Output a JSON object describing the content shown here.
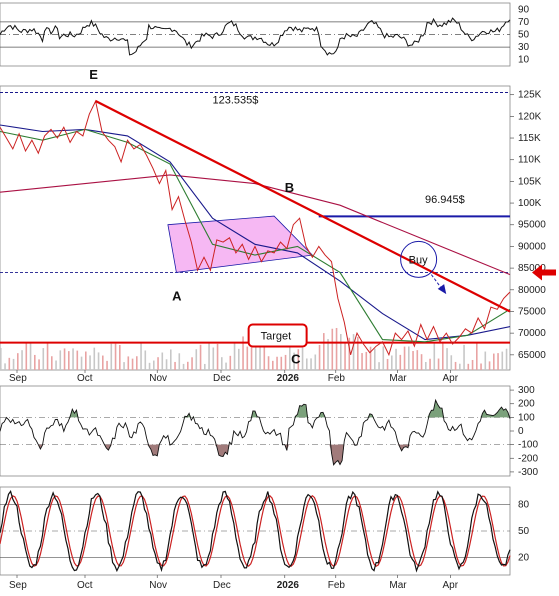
{
  "chart_data": [
    {
      "type": "line",
      "panel": "top-oscillator",
      "y_ticks": [
        10,
        30,
        50,
        70,
        90
      ],
      "ylim": [
        0,
        100
      ],
      "reference_lines": [
        30,
        50,
        70
      ]
    },
    {
      "type": "line",
      "panel": "price",
      "x_ticks": [
        "Sep",
        "Oct",
        "Nov",
        "Dec",
        "2026",
        "Feb",
        "Mar",
        "Apr"
      ],
      "y_ticks": [
        "125K",
        "120K",
        "115K",
        "110K",
        "105K",
        "100K",
        "95000",
        "90000",
        "85000",
        "80000",
        "75000",
        "70000",
        "65000"
      ],
      "y_tick_values": [
        125000,
        120000,
        115000,
        110000,
        105000,
        100000,
        95000,
        90000,
        85000,
        80000,
        75000,
        70000,
        65000
      ],
      "ylim": [
        61500,
        127000
      ],
      "price_series": {
        "x": [
          0,
          3,
          6,
          9,
          12,
          15,
          18,
          21,
          24,
          27,
          30,
          33,
          36,
          39,
          42,
          45,
          48,
          51,
          54,
          57,
          60,
          63,
          66,
          69,
          72,
          75,
          78,
          81,
          84,
          87,
          90,
          93,
          96,
          99,
          102,
          105,
          108,
          111,
          114,
          117,
          120,
          123,
          126,
          129,
          132,
          135,
          138,
          141,
          144,
          147,
          150,
          153,
          156,
          159,
          162,
          165,
          168,
          171,
          174,
          177,
          180,
          183,
          186,
          189,
          192,
          195,
          198,
          201,
          204,
          207,
          210,
          213,
          216,
          219,
          222,
          225,
          228,
          231,
          234,
          237,
          240
        ],
        "values": [
          117500,
          115000,
          112500,
          116000,
          112000,
          114500,
          111500,
          115500,
          117000,
          115000,
          117500,
          114000,
          116500,
          115500,
          120500,
          123500,
          116500,
          114500,
          113000,
          109500,
          114500,
          112500,
          113500,
          111000,
          108000,
          104500,
          107500,
          98500,
          101500,
          96000,
          91000,
          84500,
          87500,
          84500,
          91500,
          91000,
          92000,
          88500,
          90500,
          87000,
          90000,
          86500,
          89000,
          88500,
          91000,
          89500,
          95000,
          96500,
          90000,
          87500,
          90000,
          88000,
          86500,
          78000,
          72500,
          65000,
          70000,
          67500,
          65500,
          67000,
          68000,
          65000,
          70000,
          68500,
          70500,
          67000,
          72000,
          68500,
          71500,
          68000,
          70000,
          67500,
          69000,
          71000,
          70000,
          73500,
          71000,
          76000,
          75500,
          78000,
          79500
        ]
      },
      "ma_long": {
        "x": [
          0,
          40,
          80,
          120,
          160,
          200,
          240
        ],
        "values": [
          102500,
          104500,
          106500,
          104500,
          99500,
          91500,
          83500
        ]
      },
      "ma_mid": {
        "x": [
          0,
          20,
          40,
          60,
          80,
          100,
          120,
          140,
          160,
          180,
          200,
          220,
          240
        ],
        "values": [
          118000,
          116500,
          117000,
          115500,
          109500,
          96500,
          90500,
          88500,
          82000,
          74500,
          68500,
          69500,
          71500
        ]
      },
      "ma_short": {
        "x": [
          0,
          20,
          40,
          60,
          80,
          100,
          120,
          140,
          160,
          180,
          200,
          220,
          240
        ],
        "values": [
          116500,
          114500,
          117000,
          114000,
          109000,
          90500,
          88000,
          90000,
          84000,
          68500,
          68000,
          69500,
          75500
        ]
      },
      "annotations": {
        "peak_label": "123.535$",
        "level_label": "96.945$",
        "target_label": "Target",
        "buy_label": "Buy",
        "waves": [
          "E",
          "A",
          "B",
          "C"
        ]
      },
      "levels": {
        "blue_horizontal": 96945,
        "dashed_top": 125500,
        "dashed_mid": 84000,
        "red_target": 67800
      },
      "trendline": {
        "x": [
          45,
          240
        ],
        "values": [
          123535,
          75000
        ]
      },
      "triangle": {
        "x": [
          79,
          129,
          147,
          83
        ],
        "values": [
          95000,
          97000,
          88000,
          84000
        ]
      },
      "colors": {
        "price": "#cc2222",
        "ma_long": "#aa1144",
        "ma_mid": "#1a1a8c",
        "ma_short": "#2e7d32",
        "trendline": "#dd0000",
        "blue_level": "#1a1aa8",
        "triangle_fill": "#f4a6f0",
        "volume_up": "#c7c7c7",
        "volume_down": "#e8a3a3"
      }
    },
    {
      "type": "line",
      "panel": "cci",
      "y_ticks": [
        "300",
        "200",
        "100",
        "0",
        "-100",
        "-200",
        "-300"
      ],
      "y_tick_values": [
        300,
        200,
        100,
        0,
        -100,
        -200,
        -300
      ],
      "ylim": [
        -330,
        330
      ]
    },
    {
      "type": "line",
      "panel": "stochastic",
      "x_ticks": [
        "Sep",
        "Oct",
        "Nov",
        "Dec",
        "2026",
        "Feb",
        "Mar",
        "Apr"
      ],
      "y_ticks": [
        "80",
        "50",
        "20"
      ],
      "y_tick_values": [
        80,
        50,
        20
      ],
      "ylim": [
        0,
        100
      ]
    }
  ]
}
